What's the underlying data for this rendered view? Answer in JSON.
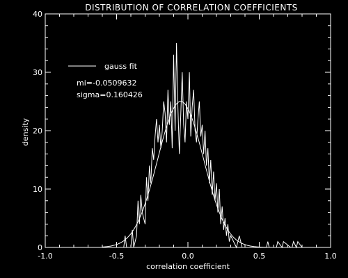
{
  "chart_data": {
    "type": "line",
    "title": "DISTRIBUTION OF CORRELATION COEFFICIENTS",
    "xlabel": "correlation coefficient",
    "ylabel": "density",
    "xlim": [
      -1.0,
      1.0
    ],
    "ylim": [
      0,
      40
    ],
    "x_ticks": [
      "-1.0",
      "-0.5",
      "0.0",
      "0.5",
      "1.0"
    ],
    "y_ticks": [
      "0",
      "10",
      "20",
      "30",
      "40"
    ],
    "grid": false,
    "background": "#000000",
    "foreground": "#ffffff",
    "legend": {
      "position": "top-left",
      "entry": "gauss fit",
      "stats": [
        "mi=-0.0509632",
        "sigma=0.160426"
      ]
    },
    "series": [
      {
        "name": "gauss fit",
        "kind": "gaussian",
        "mu": -0.0509632,
        "sigma": 0.160426,
        "peak": 25
      },
      {
        "kind": "histogram-line",
        "x": [
          -0.6,
          -0.45,
          -0.44,
          -0.43,
          -0.4,
          -0.39,
          -0.38,
          -0.36,
          -0.35,
          -0.34,
          -0.33,
          -0.32,
          -0.31,
          -0.3,
          -0.29,
          -0.28,
          -0.27,
          -0.26,
          -0.25,
          -0.24,
          -0.23,
          -0.22,
          -0.21,
          -0.2,
          -0.19,
          -0.18,
          -0.17,
          -0.16,
          -0.15,
          -0.14,
          -0.13,
          -0.12,
          -0.11,
          -0.1,
          -0.09,
          -0.08,
          -0.07,
          -0.06,
          -0.05,
          -0.04,
          -0.03,
          -0.02,
          -0.01,
          0.0,
          0.01,
          0.02,
          0.03,
          0.04,
          0.05,
          0.06,
          0.07,
          0.08,
          0.09,
          0.1,
          0.11,
          0.12,
          0.13,
          0.14,
          0.15,
          0.16,
          0.17,
          0.18,
          0.19,
          0.2,
          0.21,
          0.22,
          0.23,
          0.24,
          0.25,
          0.26,
          0.27,
          0.28,
          0.29,
          0.3,
          0.32,
          0.34,
          0.36,
          0.38,
          0.4,
          0.55,
          0.56,
          0.57,
          0.62,
          0.63,
          0.66,
          0.67,
          0.72,
          0.73,
          0.74,
          0.76,
          0.77,
          0.8
        ],
        "y": [
          0,
          0,
          2,
          0,
          0,
          3,
          0,
          2,
          8,
          4,
          9,
          6,
          5,
          4,
          12,
          8,
          14,
          11,
          17,
          15,
          19,
          22,
          18,
          21,
          17,
          20,
          25,
          23,
          18,
          27,
          21,
          25,
          17,
          33,
          20,
          35,
          24,
          16,
          23,
          30,
          21,
          18,
          25,
          22,
          30,
          19,
          24,
          27,
          20,
          18,
          22,
          25,
          19,
          21,
          16,
          20,
          14,
          17,
          11,
          15,
          9,
          13,
          8,
          11,
          6,
          10,
          4,
          7,
          3,
          5,
          2,
          4,
          1,
          2,
          1,
          0,
          2,
          0,
          0,
          0,
          1,
          0,
          0,
          1,
          0,
          1,
          0,
          0,
          1,
          0,
          1,
          0
        ]
      }
    ]
  }
}
